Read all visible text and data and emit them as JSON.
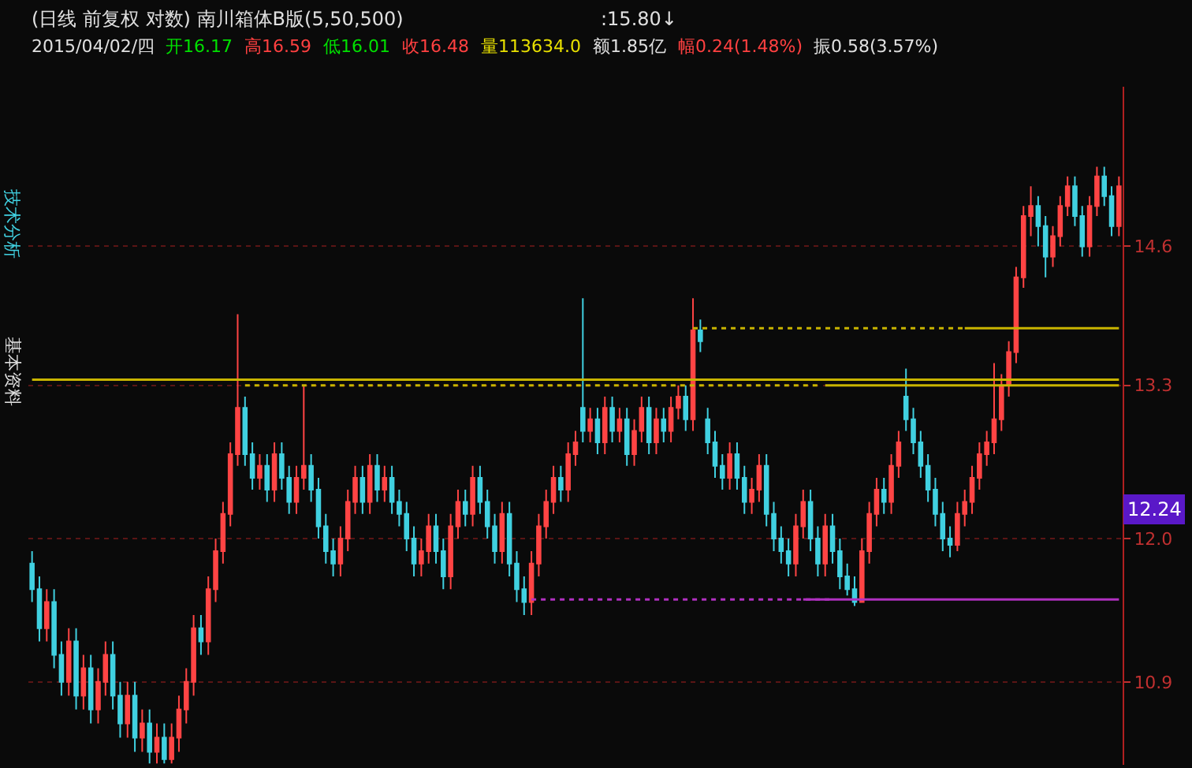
{
  "chart_data": {
    "type": "candlestick",
    "title": "(日线 前复权 对数) 南川箱体B版(5,50,500)",
    "annotations": [
      ":15.80↓",
      "2015/04/02/四",
      "开16.17",
      "高16.59",
      "低16.01",
      "收16.48",
      "量113634.0",
      "额1.85亿",
      "幅0.24(1.48%)",
      "振0.58(3.57%)",
      "技术分析",
      "基本资料",
      {
        "text": "12.24",
        "y": 12.24
      }
    ],
    "categories": [
      null,
      null,
      null,
      null,
      null,
      null,
      null,
      null,
      null,
      null,
      null,
      null,
      null,
      null,
      null,
      null,
      null,
      null,
      null,
      null,
      null,
      null,
      null,
      null,
      null,
      null,
      null,
      null,
      null,
      null,
      null,
      null,
      null,
      null,
      null,
      null,
      null,
      null,
      null,
      null,
      null,
      null,
      null,
      null,
      null,
      null,
      null,
      null,
      null,
      null,
      null,
      null,
      null,
      null,
      null,
      null,
      null,
      null,
      null,
      null,
      null,
      null,
      null,
      null,
      null,
      null,
      null,
      null,
      null,
      null,
      null,
      null,
      null,
      null,
      null,
      null,
      null,
      null,
      null,
      null,
      null,
      null,
      null,
      null,
      null,
      null,
      null,
      null,
      null,
      null,
      null,
      null,
      null,
      null,
      null,
      null,
      null,
      null,
      null,
      null,
      null,
      null,
      null,
      null,
      null,
      null,
      null,
      null,
      null,
      null,
      null,
      null,
      null,
      null,
      null,
      null,
      null,
      null,
      null,
      null,
      null,
      null,
      null,
      null,
      null,
      null,
      null,
      null,
      null,
      null,
      null,
      null,
      null,
      null,
      null,
      null,
      null,
      null,
      null,
      null,
      null,
      null,
      null,
      null,
      null,
      null,
      null,
      null,
      null
    ],
    "series": [
      {
        "ohlc": [
          [
            11.8,
            11.9,
            11.5,
            11.6
          ],
          [
            11.6,
            11.7,
            11.2,
            11.3
          ],
          [
            11.3,
            11.6,
            11.2,
            11.5
          ],
          [
            11.5,
            11.6,
            11.0,
            11.1
          ],
          [
            11.1,
            11.2,
            10.8,
            10.9
          ],
          [
            10.9,
            11.3,
            10.8,
            11.2
          ],
          [
            11.2,
            11.3,
            10.7,
            10.8
          ],
          [
            10.8,
            11.1,
            10.7,
            11.0
          ],
          [
            11.0,
            11.1,
            10.6,
            10.7
          ],
          [
            10.7,
            11.0,
            10.6,
            10.9
          ],
          [
            10.9,
            11.2,
            10.8,
            11.1
          ],
          [
            11.1,
            11.2,
            10.7,
            10.8
          ],
          [
            10.8,
            10.9,
            10.5,
            10.6
          ],
          [
            10.6,
            10.9,
            10.5,
            10.8
          ],
          [
            10.8,
            10.9,
            10.4,
            10.5
          ],
          [
            10.5,
            10.7,
            10.4,
            10.6
          ],
          [
            10.6,
            10.7,
            10.32,
            10.4
          ],
          [
            10.4,
            10.6,
            10.32,
            10.5
          ],
          [
            10.5,
            10.6,
            10.32,
            10.35
          ],
          [
            10.35,
            10.6,
            10.32,
            10.5
          ],
          [
            10.5,
            10.8,
            10.4,
            10.7
          ],
          [
            10.7,
            11.0,
            10.6,
            10.9
          ],
          [
            10.9,
            11.4,
            10.8,
            11.3
          ],
          [
            11.3,
            11.4,
            11.1,
            11.2
          ],
          [
            11.2,
            11.7,
            11.1,
            11.6
          ],
          [
            11.6,
            12.0,
            11.5,
            11.9
          ],
          [
            11.9,
            12.3,
            11.8,
            12.2
          ],
          [
            12.2,
            12.8,
            12.1,
            12.7
          ],
          [
            12.7,
            13.95,
            12.6,
            13.1
          ],
          [
            13.1,
            13.2,
            12.6,
            12.7
          ],
          [
            12.7,
            12.8,
            12.4,
            12.5
          ],
          [
            12.5,
            12.7,
            12.4,
            12.6
          ],
          [
            12.6,
            12.7,
            12.3,
            12.4
          ],
          [
            12.4,
            12.8,
            12.3,
            12.7
          ],
          [
            12.7,
            12.8,
            12.4,
            12.5
          ],
          [
            12.5,
            12.6,
            12.2,
            12.3
          ],
          [
            12.3,
            12.6,
            12.2,
            12.5
          ],
          [
            12.5,
            13.3,
            12.4,
            12.6
          ],
          [
            12.6,
            12.7,
            12.3,
            12.4
          ],
          [
            12.4,
            12.5,
            12.0,
            12.1
          ],
          [
            12.1,
            12.2,
            11.8,
            11.9
          ],
          [
            11.9,
            12.0,
            11.7,
            11.8
          ],
          [
            11.8,
            12.1,
            11.7,
            12.0
          ],
          [
            12.0,
            12.4,
            11.9,
            12.3
          ],
          [
            12.3,
            12.6,
            12.2,
            12.5
          ],
          [
            12.5,
            12.6,
            12.2,
            12.3
          ],
          [
            12.3,
            12.7,
            12.2,
            12.6
          ],
          [
            12.6,
            12.7,
            12.3,
            12.4
          ],
          [
            12.4,
            12.6,
            12.3,
            12.5
          ],
          [
            12.5,
            12.6,
            12.2,
            12.3
          ],
          [
            12.3,
            12.4,
            12.1,
            12.2
          ],
          [
            12.2,
            12.3,
            11.9,
            12.0
          ],
          [
            12.0,
            12.1,
            11.7,
            11.8
          ],
          [
            11.8,
            12.0,
            11.7,
            11.9
          ],
          [
            11.9,
            12.2,
            11.8,
            12.1
          ],
          [
            12.1,
            12.2,
            11.8,
            11.9
          ],
          [
            11.9,
            12.0,
            11.6,
            11.7
          ],
          [
            11.7,
            12.2,
            11.6,
            12.1
          ],
          [
            12.1,
            12.4,
            12.0,
            12.3
          ],
          [
            12.3,
            12.4,
            12.1,
            12.2
          ],
          [
            12.2,
            12.6,
            12.1,
            12.5
          ],
          [
            12.5,
            12.6,
            12.2,
            12.3
          ],
          [
            12.3,
            12.4,
            12.0,
            12.1
          ],
          [
            12.1,
            12.2,
            11.8,
            11.9
          ],
          [
            11.9,
            12.3,
            11.8,
            12.2
          ],
          [
            12.2,
            12.3,
            11.7,
            11.8
          ],
          [
            11.8,
            11.9,
            11.5,
            11.6
          ],
          [
            11.6,
            11.7,
            11.4,
            11.5
          ],
          [
            11.5,
            11.9,
            11.4,
            11.8
          ],
          [
            11.8,
            12.2,
            11.7,
            12.1
          ],
          [
            12.1,
            12.4,
            12.0,
            12.3
          ],
          [
            12.3,
            12.6,
            12.2,
            12.5
          ],
          [
            12.5,
            12.6,
            12.3,
            12.4
          ],
          [
            12.4,
            12.8,
            12.3,
            12.7
          ],
          [
            12.7,
            12.9,
            12.6,
            12.8
          ],
          [
            13.1,
            14.1,
            12.8,
            12.9
          ],
          [
            12.9,
            13.1,
            12.8,
            13.0
          ],
          [
            13.0,
            13.1,
            12.7,
            12.8
          ],
          [
            12.8,
            13.2,
            12.7,
            13.1
          ],
          [
            13.1,
            13.2,
            12.8,
            12.9
          ],
          [
            12.9,
            13.1,
            12.8,
            13.0
          ],
          [
            13.0,
            13.1,
            12.6,
            12.7
          ],
          [
            12.7,
            13.0,
            12.6,
            12.9
          ],
          [
            12.9,
            13.2,
            12.8,
            13.1
          ],
          [
            13.1,
            13.2,
            12.7,
            12.8
          ],
          [
            12.8,
            13.1,
            12.7,
            13.0
          ],
          [
            13.0,
            13.1,
            12.8,
            12.9
          ],
          [
            12.9,
            13.2,
            12.8,
            13.1
          ],
          [
            13.1,
            13.3,
            13.0,
            13.2
          ],
          [
            13.2,
            13.3,
            12.9,
            13.0
          ],
          [
            13.0,
            14.1,
            12.9,
            13.8
          ],
          [
            13.8,
            13.9,
            13.6,
            13.7
          ],
          [
            13.0,
            13.1,
            12.7,
            12.8
          ],
          [
            12.8,
            12.9,
            12.5,
            12.6
          ],
          [
            12.6,
            12.7,
            12.4,
            12.5
          ],
          [
            12.5,
            12.8,
            12.4,
            12.7
          ],
          [
            12.7,
            12.8,
            12.4,
            12.5
          ],
          [
            12.5,
            12.6,
            12.2,
            12.3
          ],
          [
            12.3,
            12.5,
            12.2,
            12.4
          ],
          [
            12.4,
            12.7,
            12.3,
            12.6
          ],
          [
            12.6,
            12.7,
            12.1,
            12.2
          ],
          [
            12.2,
            12.3,
            11.9,
            12.0
          ],
          [
            12.0,
            12.1,
            11.8,
            11.9
          ],
          [
            11.9,
            12.0,
            11.7,
            11.8
          ],
          [
            11.8,
            12.2,
            11.7,
            12.1
          ],
          [
            12.1,
            12.4,
            12.0,
            12.3
          ],
          [
            12.3,
            12.4,
            11.9,
            12.0
          ],
          [
            12.0,
            12.1,
            11.7,
            11.8
          ],
          [
            11.8,
            12.2,
            11.7,
            12.1
          ],
          [
            12.1,
            12.2,
            11.8,
            11.9
          ],
          [
            11.9,
            12.0,
            11.6,
            11.7
          ],
          [
            11.7,
            11.8,
            11.55,
            11.6
          ],
          [
            11.6,
            11.7,
            11.47,
            11.5
          ],
          [
            11.5,
            12.0,
            11.5,
            11.9
          ],
          [
            11.9,
            12.3,
            11.8,
            12.2
          ],
          [
            12.2,
            12.5,
            12.1,
            12.4
          ],
          [
            12.4,
            12.5,
            12.2,
            12.3
          ],
          [
            12.3,
            12.7,
            12.2,
            12.6
          ],
          [
            12.6,
            12.9,
            12.5,
            12.8
          ],
          [
            13.2,
            13.45,
            12.9,
            13.0
          ],
          [
            13.0,
            13.1,
            12.7,
            12.8
          ],
          [
            12.8,
            12.9,
            12.5,
            12.6
          ],
          [
            12.6,
            12.7,
            12.3,
            12.4
          ],
          [
            12.4,
            12.5,
            12.1,
            12.2
          ],
          [
            12.2,
            12.3,
            11.9,
            12.0
          ],
          [
            12.0,
            12.1,
            11.85,
            11.95
          ],
          [
            11.95,
            12.3,
            11.9,
            12.2
          ],
          [
            12.2,
            12.4,
            12.1,
            12.3
          ],
          [
            12.3,
            12.6,
            12.2,
            12.5
          ],
          [
            12.5,
            12.8,
            12.4,
            12.7
          ],
          [
            12.7,
            12.9,
            12.6,
            12.8
          ],
          [
            12.8,
            13.5,
            12.7,
            13.0
          ],
          [
            13.0,
            13.4,
            12.9,
            13.3
          ],
          [
            13.3,
            13.7,
            13.2,
            13.6
          ],
          [
            13.6,
            14.4,
            13.5,
            14.3
          ],
          [
            14.3,
            15.0,
            14.2,
            14.9
          ],
          [
            14.9,
            15.2,
            14.7,
            15.0
          ],
          [
            15.0,
            15.1,
            14.6,
            14.8
          ],
          [
            14.8,
            14.9,
            14.3,
            14.5
          ],
          [
            14.5,
            14.8,
            14.4,
            14.7
          ],
          [
            14.7,
            15.1,
            14.6,
            15.0
          ],
          [
            15.0,
            15.3,
            14.9,
            15.2
          ],
          [
            15.2,
            15.3,
            14.8,
            14.9
          ],
          [
            14.9,
            15.0,
            14.5,
            14.6
          ],
          [
            14.6,
            15.1,
            14.5,
            15.0
          ],
          [
            15.0,
            15.4,
            14.9,
            15.3
          ],
          [
            15.3,
            15.4,
            15.0,
            15.1
          ],
          [
            15.1,
            15.2,
            14.7,
            14.8
          ],
          [
            14.8,
            15.3,
            14.7,
            15.2
          ]
        ],
        "colors": [
          "#40d0e0",
          "#40d0e0",
          "#ff4444",
          "#40d0e0",
          "#40d0e0",
          "#ff4444",
          "#40d0e0",
          "#ff4444",
          "#40d0e0",
          "#ff4444",
          "#ff4444",
          "#40d0e0",
          "#40d0e0",
          "#ff4444",
          "#40d0e0",
          "#ff4444",
          "#40d0e0",
          "#ff4444",
          "#40d0e0",
          "#ff4444",
          "#ff4444",
          "#ff4444",
          "#ff4444",
          "#40d0e0",
          "#ff4444",
          "#ff4444",
          "#ff4444",
          "#ff4444",
          "#ff4444",
          "#40d0e0",
          "#40d0e0",
          "#ff4444",
          "#40d0e0",
          "#ff4444",
          "#40d0e0",
          "#40d0e0",
          "#ff4444",
          "#ff4444",
          "#40d0e0",
          "#40d0e0",
          "#40d0e0",
          "#40d0e0",
          "#ff4444",
          "#ff4444",
          "#ff4444",
          "#40d0e0",
          "#ff4444",
          "#40d0e0",
          "#ff4444",
          "#40d0e0",
          "#40d0e0",
          "#40d0e0",
          "#40d0e0",
          "#ff4444",
          "#ff4444",
          "#40d0e0",
          "#40d0e0",
          "#ff4444",
          "#ff4444",
          "#40d0e0",
          "#ff4444",
          "#40d0e0",
          "#40d0e0",
          "#40d0e0",
          "#ff4444",
          "#40d0e0",
          "#40d0e0",
          "#40d0e0",
          "#ff4444",
          "#ff4444",
          "#ff4444",
          "#ff4444",
          "#40d0e0",
          "#ff4444",
          "#ff4444",
          "#40d0e0",
          "#ff4444",
          "#40d0e0",
          "#ff4444",
          "#40d0e0",
          "#ff4444",
          "#40d0e0",
          "#ff4444",
          "#ff4444",
          "#40d0e0",
          "#ff4444",
          "#40d0e0",
          "#ff4444",
          "#ff4444",
          "#40d0e0",
          "#ff4444",
          "#40d0e0",
          "#40d0e0",
          "#40d0e0",
          "#40d0e0",
          "#ff4444",
          "#40d0e0",
          "#40d0e0",
          "#ff4444",
          "#ff4444",
          "#40d0e0",
          "#40d0e0",
          "#40d0e0",
          "#40d0e0",
          "#ff4444",
          "#ff4444",
          "#40d0e0",
          "#40d0e0",
          "#ff4444",
          "#40d0e0",
          "#40d0e0",
          "#40d0e0",
          "#40d0e0",
          "#ff4444",
          "#ff4444",
          "#ff4444",
          "#40d0e0",
          "#ff4444",
          "#ff4444",
          "#40d0e0",
          "#40d0e0",
          "#40d0e0",
          "#40d0e0",
          "#40d0e0",
          "#40d0e0",
          "#40d0e0",
          "#ff4444",
          "#ff4444",
          "#ff4444",
          "#ff4444",
          "#ff4444",
          "#ff4444",
          "#ff4444",
          "#ff4444",
          "#ff4444",
          "#ff4444",
          "#ff4444",
          "#40d0e0",
          "#40d0e0",
          "#ff4444",
          "#ff4444",
          "#ff4444",
          "#40d0e0",
          "#40d0e0",
          "#ff4444",
          "#ff4444",
          "#40d0e0",
          "#40d0e0",
          "#ff4444"
        ]
      },
      {
        "type": "line",
        "color": "#c8b400",
        "line_style": "solid",
        "values": [
          13.35,
          13.35,
          13.35,
          13.35,
          13.35,
          13.35,
          13.35,
          13.35,
          13.35,
          13.35,
          13.35,
          13.35,
          13.35,
          13.35,
          13.35,
          13.35,
          13.35,
          13.35,
          13.35,
          13.35,
          13.35,
          13.35,
          13.35,
          13.35,
          13.35,
          13.35,
          13.35,
          13.35,
          13.35,
          13.35,
          13.35,
          13.35,
          13.35,
          13.35,
          13.35,
          13.35,
          13.35,
          13.35,
          13.35,
          13.35,
          13.35,
          13.35,
          13.35,
          13.35,
          13.35,
          13.35,
          13.35,
          13.35,
          13.35,
          13.35,
          13.35,
          13.35,
          13.35,
          13.35,
          13.35,
          13.35,
          13.35,
          13.35,
          13.35,
          13.35,
          13.35,
          13.35,
          13.35,
          13.35,
          13.35,
          13.35,
          13.35,
          13.35,
          13.35,
          13.35,
          13.35,
          13.35,
          13.35,
          13.35,
          13.35,
          13.35,
          13.35,
          13.35,
          13.35,
          13.35,
          13.35,
          13.35,
          13.35,
          13.35,
          13.35,
          13.35,
          13.35,
          13.35,
          13.35,
          13.35,
          13.35,
          13.35,
          13.35,
          13.35,
          13.35,
          13.35,
          13.35,
          13.35,
          13.35,
          13.35,
          13.35,
          13.35,
          13.35,
          13.35,
          13.35,
          13.35,
          13.35,
          13.35,
          13.35,
          13.35,
          13.35,
          13.35,
          13.35,
          13.35,
          13.35,
          13.35,
          13.35,
          13.35,
          13.35,
          13.35,
          13.35,
          13.35,
          13.35,
          13.35,
          13.35,
          13.35,
          13.35,
          13.35,
          13.35,
          13.35,
          13.35,
          13.35,
          13.35,
          13.35,
          13.35,
          13.35,
          13.35,
          13.35,
          13.35,
          13.35,
          13.35,
          13.35,
          13.35,
          13.35,
          13.35,
          13.35,
          13.35,
          13.35,
          13.35
        ]
      },
      {
        "type": "line",
        "color": "#c8b400",
        "line_style": "dotted",
        "values": [
          null,
          null,
          null,
          null,
          null,
          null,
          null,
          null,
          null,
          null,
          null,
          null,
          null,
          null,
          null,
          null,
          null,
          null,
          null,
          null,
          null,
          null,
          null,
          null,
          null,
          null,
          null,
          null,
          null,
          13.3,
          13.3,
          13.3,
          13.3,
          13.3,
          13.3,
          13.3,
          13.3,
          13.3,
          13.3,
          13.3,
          13.3,
          13.3,
          13.3,
          13.3,
          13.3,
          13.3,
          13.3,
          13.3,
          13.3,
          13.3,
          13.3,
          13.3,
          13.3,
          13.3,
          13.3,
          13.3,
          13.3,
          13.3,
          13.3,
          13.3,
          13.3,
          13.3,
          13.3,
          13.3,
          13.3,
          13.3,
          13.3,
          13.3,
          13.3,
          13.3,
          13.3,
          13.3,
          13.3,
          13.3,
          13.3,
          13.3,
          13.3,
          13.3,
          13.3,
          13.3,
          13.3,
          13.3,
          13.3,
          13.3,
          13.3,
          13.3,
          13.3,
          13.3,
          13.3,
          13.3,
          13.3,
          13.3,
          13.3,
          13.3,
          13.3,
          13.3,
          13.3,
          13.3,
          13.3,
          13.3,
          13.3,
          13.3,
          13.3,
          13.3,
          13.3,
          13.3,
          13.3,
          13.3,
          null,
          null,
          null,
          null,
          null,
          null,
          null,
          null,
          null,
          null,
          null,
          null,
          null,
          null,
          null,
          null,
          null,
          null,
          null,
          null,
          null,
          null,
          null,
          null,
          null,
          null,
          null,
          null,
          null,
          null,
          null,
          null,
          null,
          null,
          null,
          null,
          null,
          null,
          null,
          null,
          null
        ]
      },
      {
        "type": "line",
        "color": "#c8b400",
        "line_style": "solid",
        "values": [
          null,
          null,
          null,
          null,
          null,
          null,
          null,
          null,
          null,
          null,
          null,
          null,
          null,
          null,
          null,
          null,
          null,
          null,
          null,
          null,
          null,
          null,
          null,
          null,
          null,
          null,
          null,
          null,
          null,
          null,
          null,
          null,
          null,
          null,
          null,
          null,
          null,
          null,
          null,
          null,
          null,
          null,
          null,
          null,
          null,
          null,
          null,
          null,
          null,
          null,
          null,
          null,
          null,
          null,
          null,
          null,
          null,
          null,
          null,
          null,
          null,
          null,
          null,
          null,
          null,
          null,
          null,
          null,
          null,
          null,
          null,
          null,
          null,
          null,
          null,
          null,
          null,
          null,
          null,
          null,
          null,
          null,
          null,
          null,
          null,
          null,
          null,
          null,
          null,
          null,
          null,
          null,
          null,
          null,
          null,
          null,
          null,
          null,
          null,
          null,
          null,
          null,
          null,
          null,
          null,
          null,
          null,
          null,
          13.3,
          13.3,
          13.3,
          13.3,
          13.3,
          13.3,
          13.3,
          13.3,
          13.3,
          13.3,
          13.3,
          13.3,
          13.3,
          13.3,
          13.3,
          13.3,
          13.3,
          13.3,
          13.3,
          13.3,
          13.3,
          13.3,
          13.3,
          13.3,
          13.3,
          13.3,
          13.3,
          13.3,
          13.3,
          13.3,
          13.3,
          13.3,
          13.3,
          13.3,
          13.3,
          13.3,
          13.3,
          13.3,
          13.3,
          13.3,
          13.3
        ]
      },
      {
        "type": "line",
        "color": "#c8b400",
        "line_style": "dotted",
        "values": [
          null,
          null,
          null,
          null,
          null,
          null,
          null,
          null,
          null,
          null,
          null,
          null,
          null,
          null,
          null,
          null,
          null,
          null,
          null,
          null,
          null,
          null,
          null,
          null,
          null,
          null,
          null,
          null,
          null,
          null,
          null,
          null,
          null,
          null,
          null,
          null,
          null,
          null,
          null,
          null,
          null,
          null,
          null,
          null,
          null,
          null,
          null,
          null,
          null,
          null,
          null,
          null,
          null,
          null,
          null,
          null,
          null,
          null,
          null,
          null,
          null,
          null,
          null,
          null,
          null,
          null,
          null,
          null,
          null,
          null,
          null,
          null,
          null,
          null,
          null,
          null,
          null,
          null,
          null,
          null,
          null,
          null,
          null,
          null,
          null,
          null,
          null,
          null,
          null,
          null,
          13.82,
          13.82,
          13.82,
          13.82,
          13.82,
          13.82,
          13.82,
          13.82,
          13.82,
          13.82,
          13.82,
          13.82,
          13.82,
          13.82,
          13.82,
          13.82,
          13.82,
          13.82,
          13.82,
          13.82,
          13.82,
          13.82,
          13.82,
          13.82,
          13.82,
          13.82,
          13.82,
          13.82,
          13.82,
          13.82,
          13.82,
          13.82,
          13.82,
          13.82,
          13.82,
          13.82,
          13.82,
          13.82,
          null,
          null,
          null,
          null,
          null,
          null,
          null,
          null,
          null,
          null,
          null,
          null,
          null,
          null,
          null,
          null,
          null,
          null,
          null,
          null,
          null
        ]
      },
      {
        "type": "line",
        "color": "#c8b400",
        "line_style": "solid",
        "values": [
          null,
          null,
          null,
          null,
          null,
          null,
          null,
          null,
          null,
          null,
          null,
          null,
          null,
          null,
          null,
          null,
          null,
          null,
          null,
          null,
          null,
          null,
          null,
          null,
          null,
          null,
          null,
          null,
          null,
          null,
          null,
          null,
          null,
          null,
          null,
          null,
          null,
          null,
          null,
          null,
          null,
          null,
          null,
          null,
          null,
          null,
          null,
          null,
          null,
          null,
          null,
          null,
          null,
          null,
          null,
          null,
          null,
          null,
          null,
          null,
          null,
          null,
          null,
          null,
          null,
          null,
          null,
          null,
          null,
          null,
          null,
          null,
          null,
          null,
          null,
          null,
          null,
          null,
          null,
          null,
          null,
          null,
          null,
          null,
          null,
          null,
          null,
          null,
          null,
          null,
          null,
          null,
          null,
          null,
          null,
          null,
          null,
          null,
          null,
          null,
          null,
          null,
          null,
          null,
          null,
          null,
          null,
          null,
          null,
          null,
          null,
          null,
          null,
          null,
          null,
          null,
          null,
          null,
          null,
          null,
          null,
          null,
          null,
          null,
          null,
          null,
          null,
          13.82,
          13.82,
          13.82,
          13.82,
          13.82,
          13.82,
          13.82,
          13.82,
          13.82,
          13.82,
          13.82,
          13.82,
          13.82,
          13.82,
          13.82,
          13.82,
          13.82,
          13.82,
          13.82,
          13.82,
          13.82,
          13.82
        ]
      },
      {
        "type": "line",
        "color": "#b030c0",
        "line_style": "dotted",
        "values": [
          null,
          null,
          null,
          null,
          null,
          null,
          null,
          null,
          null,
          null,
          null,
          null,
          null,
          null,
          null,
          null,
          null,
          null,
          null,
          null,
          null,
          null,
          null,
          null,
          null,
          null,
          null,
          null,
          null,
          null,
          null,
          null,
          null,
          null,
          null,
          null,
          null,
          null,
          null,
          null,
          null,
          null,
          null,
          null,
          null,
          null,
          null,
          null,
          null,
          null,
          null,
          null,
          null,
          null,
          null,
          null,
          null,
          null,
          null,
          null,
          null,
          null,
          null,
          null,
          null,
          null,
          null,
          null,
          11.52,
          11.52,
          11.52,
          11.52,
          11.52,
          11.52,
          11.52,
          11.52,
          11.52,
          11.52,
          11.52,
          11.52,
          11.52,
          11.52,
          11.52,
          11.52,
          11.52,
          11.52,
          11.52,
          11.52,
          11.52,
          11.52,
          11.52,
          11.52,
          11.52,
          11.52,
          11.52,
          11.52,
          11.52,
          11.52,
          11.52,
          11.52,
          11.52,
          11.52,
          11.52,
          11.52,
          11.52,
          11.52,
          11.52,
          11.52,
          11.52,
          11.52,
          null,
          null,
          null,
          null,
          null,
          null,
          null,
          null,
          null,
          null,
          null,
          null,
          null,
          null,
          null,
          null,
          null,
          null,
          null,
          null,
          null,
          null,
          null,
          null,
          null,
          null,
          null,
          null,
          null,
          null,
          null,
          null,
          null,
          null,
          null,
          null,
          null,
          null,
          null
        ]
      },
      {
        "type": "line",
        "color": "#b030c0",
        "line_style": "solid",
        "values": [
          null,
          null,
          null,
          null,
          null,
          null,
          null,
          null,
          null,
          null,
          null,
          null,
          null,
          null,
          null,
          null,
          null,
          null,
          null,
          null,
          null,
          null,
          null,
          null,
          null,
          null,
          null,
          null,
          null,
          null,
          null,
          null,
          null,
          null,
          null,
          null,
          null,
          null,
          null,
          null,
          null,
          null,
          null,
          null,
          null,
          null,
          null,
          null,
          null,
          null,
          null,
          null,
          null,
          null,
          null,
          null,
          null,
          null,
          null,
          null,
          null,
          null,
          null,
          null,
          null,
          null,
          null,
          null,
          null,
          null,
          null,
          null,
          null,
          null,
          null,
          null,
          null,
          null,
          null,
          null,
          null,
          null,
          null,
          null,
          null,
          null,
          null,
          null,
          null,
          null,
          null,
          null,
          null,
          null,
          null,
          null,
          null,
          null,
          null,
          null,
          null,
          null,
          null,
          null,
          null,
          11.52,
          11.52,
          11.52,
          11.52,
          11.52,
          11.52,
          11.52,
          11.52,
          11.52,
          11.52,
          11.52,
          11.52,
          11.52,
          11.52,
          11.52,
          11.52,
          11.52,
          11.52,
          11.52,
          11.52,
          11.52,
          11.52,
          11.52,
          11.52,
          11.52,
          11.52,
          11.52,
          11.52,
          11.52,
          11.52,
          11.52,
          11.52,
          11.52,
          11.52,
          11.52,
          11.52,
          11.52,
          11.52,
          11.52,
          11.52,
          11.52,
          11.52,
          11.52,
          11.52
        ]
      }
    ],
    "ylim": [
      10.31,
      16.25
    ],
    "yticks": [
      {
        "value": 14.6,
        "label": "14.6"
      },
      {
        "value": 13.3,
        "label": "13.3"
      },
      {
        "value": 12,
        "label": "12.0"
      },
      {
        "value": 10.9,
        "label": "10.9"
      }
    ],
    "log": "y",
    "grid": "y",
    "tick_labels": "y",
    "marker": "none"
  }
}
